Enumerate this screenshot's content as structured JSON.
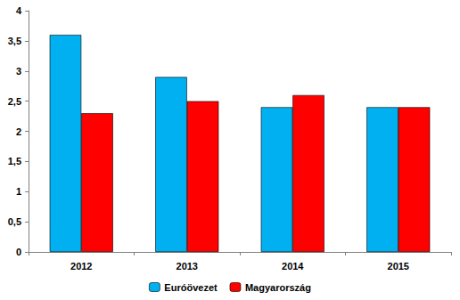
{
  "chart_data": {
    "type": "bar",
    "categories": [
      "2012",
      "2013",
      "2014",
      "2015"
    ],
    "series": [
      {
        "name": "Euróövezet",
        "color": "#00B0F0",
        "values": [
          3.6,
          2.9,
          2.4,
          2.4
        ]
      },
      {
        "name": "Magyarország",
        "color": "#FF0000",
        "values": [
          2.3,
          2.5,
          2.6,
          2.4
        ]
      }
    ],
    "ylim": [
      0,
      4
    ],
    "yticks": [
      0,
      {
        "value": 0.5,
        "label": "0,5"
      },
      1,
      {
        "value": 1.5,
        "label": "1,5"
      },
      2,
      {
        "value": 2.5,
        "label": "2,5"
      },
      3,
      {
        "value": 3.5,
        "label": "3,5"
      },
      4
    ],
    "grid": false,
    "legend": "bottom"
  }
}
